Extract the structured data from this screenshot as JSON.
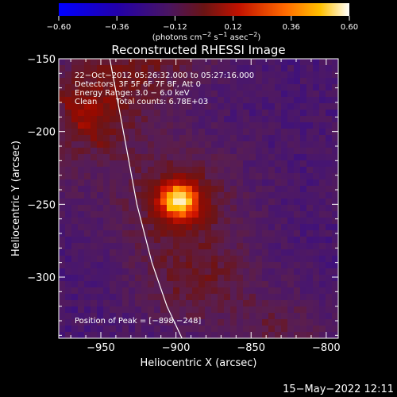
{
  "chart_data": {
    "type": "heatmap",
    "title": "Reconstructed RHESSI Image",
    "xlabel": "Heliocentric X (arcsec)",
    "ylabel": "Heliocentric Y (arcsec)",
    "xlim": [
      -978,
      -792
    ],
    "ylim": [
      -342,
      -150
    ],
    "x_ticks": [
      -950,
      -900,
      -850,
      -800
    ],
    "x_tick_labels": [
      "−950",
      "−900",
      "−850",
      "−800"
    ],
    "y_ticks": [
      -150,
      -200,
      -250,
      -300
    ],
    "y_tick_labels": [
      "−150",
      "−200",
      "−250",
      "−300"
    ],
    "colorbar": {
      "range": [
        -0.6,
        0.6
      ],
      "ticks": [
        -0.6,
        -0.36,
        -0.12,
        0.12,
        0.36,
        0.6
      ],
      "tick_labels": [
        "−0.60",
        "−0.36",
        "−0.12",
        "0.12",
        "0.36",
        "0.60"
      ],
      "unit_prefix": "(photons cm",
      "unit_exp1": "−2",
      "unit_mid": " s",
      "unit_exp2": "−1",
      "unit_mid2": " asec",
      "unit_exp3": "−2",
      "unit_suffix": ")"
    },
    "peak": {
      "x": -898,
      "y": -248
    },
    "annotations": {
      "time_range": "22−Oct−2012 05:26:32.000 to 05:27:16.000",
      "detectors": "Detectors: 3F 5F 6F 7F 8F, Att 0",
      "energy": "Energy Range: 3.0 − 6.0 keV",
      "method": "Clean",
      "counts": "Total counts: 6.78E+03",
      "peak_text": "Position of Peak = [−898,−248]"
    },
    "limb": {
      "x": [
        -944,
        -935,
        -926,
        -916,
        -906,
        -896
      ],
      "y": [
        -150,
        -200,
        -250,
        -290,
        -320,
        -342
      ]
    },
    "grid": false
  },
  "footer": {
    "timestamp": "15−May−2022 12:11"
  }
}
